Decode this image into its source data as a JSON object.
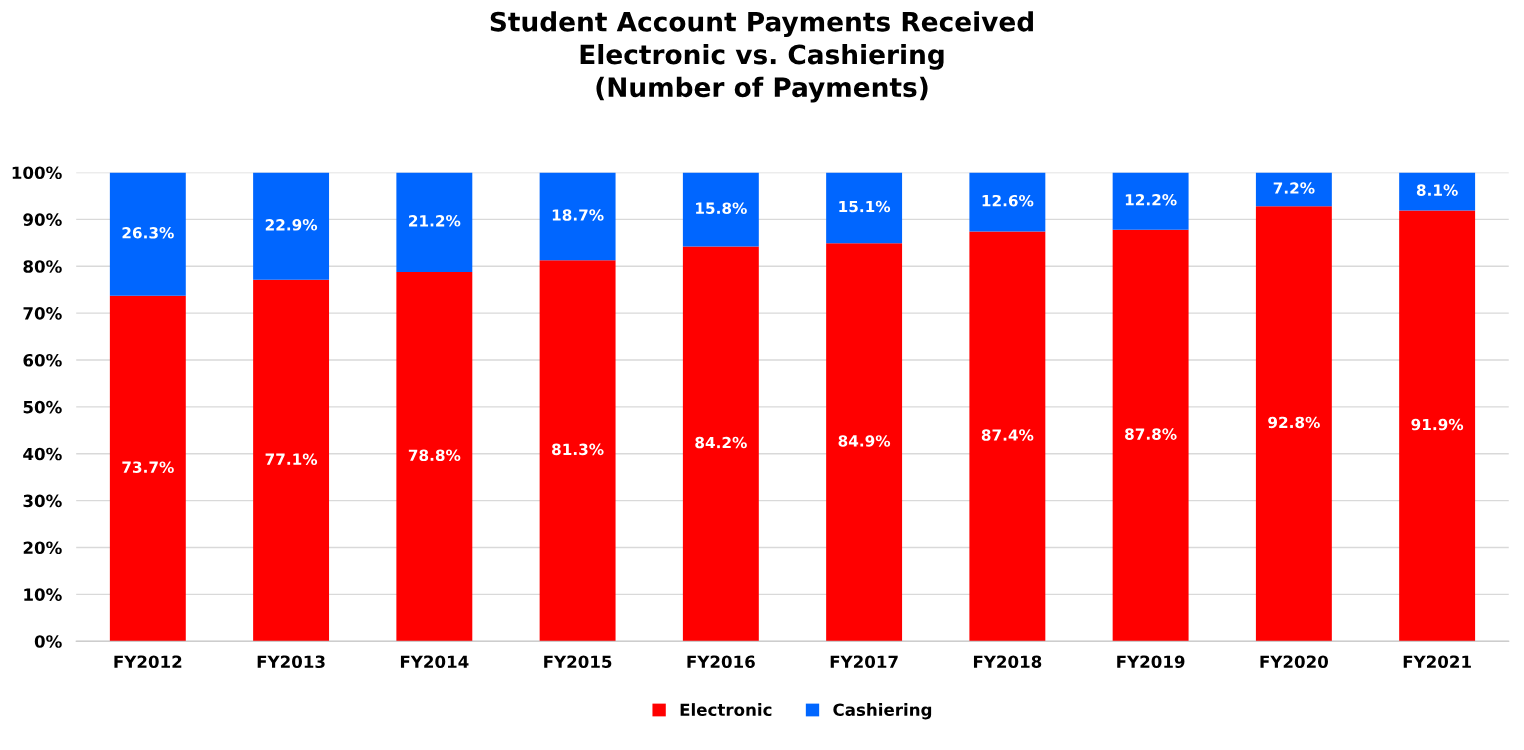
{
  "chart_data": {
    "type": "bar",
    "stacked": true,
    "title": "Student Account Payments Received\nElectronic vs. Cashiering\n(Number of Payments)",
    "categories": [
      "FY2012",
      "FY2013",
      "FY2014",
      "FY2015",
      "FY2016",
      "FY2017",
      "FY2018",
      "FY2019",
      "FY2020",
      "FY2021"
    ],
    "series": [
      {
        "name": "Electronic",
        "color": "#ff0000",
        "values": [
          73.7,
          77.1,
          78.8,
          81.3,
          84.2,
          84.9,
          87.4,
          87.8,
          92.8,
          91.9
        ],
        "value_labels": [
          "73.7%",
          "77.1%",
          "78.8%",
          "81.3%",
          "84.2%",
          "84.9%",
          "87.4%",
          "87.8%",
          "92.8%",
          "91.9%"
        ]
      },
      {
        "name": "Cashiering",
        "color": "#0066ff",
        "values": [
          26.3,
          22.9,
          21.2,
          18.7,
          15.8,
          15.1,
          12.6,
          12.2,
          7.2,
          8.1
        ],
        "value_labels": [
          "26.3%",
          "22.9%",
          "21.2%",
          "18.7%",
          "15.8%",
          "15.1%",
          "12.6%",
          "12.2%",
          "7.2%",
          "8.1%"
        ]
      }
    ],
    "ylim": [
      0,
      100
    ],
    "yticks": [
      {
        "value": 0,
        "label": "0%"
      },
      {
        "value": 10,
        "label": "10%"
      },
      {
        "value": 20,
        "label": "20%"
      },
      {
        "value": 30,
        "label": "30%"
      },
      {
        "value": 40,
        "label": "40%"
      },
      {
        "value": 50,
        "label": "50%"
      },
      {
        "value": 60,
        "label": "60%"
      },
      {
        "value": 70,
        "label": "70%"
      },
      {
        "value": 80,
        "label": "80%"
      },
      {
        "value": 90,
        "label": "90%"
      },
      {
        "value": 100,
        "label": "100%"
      }
    ],
    "grid": "y",
    "legend": "bottom"
  }
}
